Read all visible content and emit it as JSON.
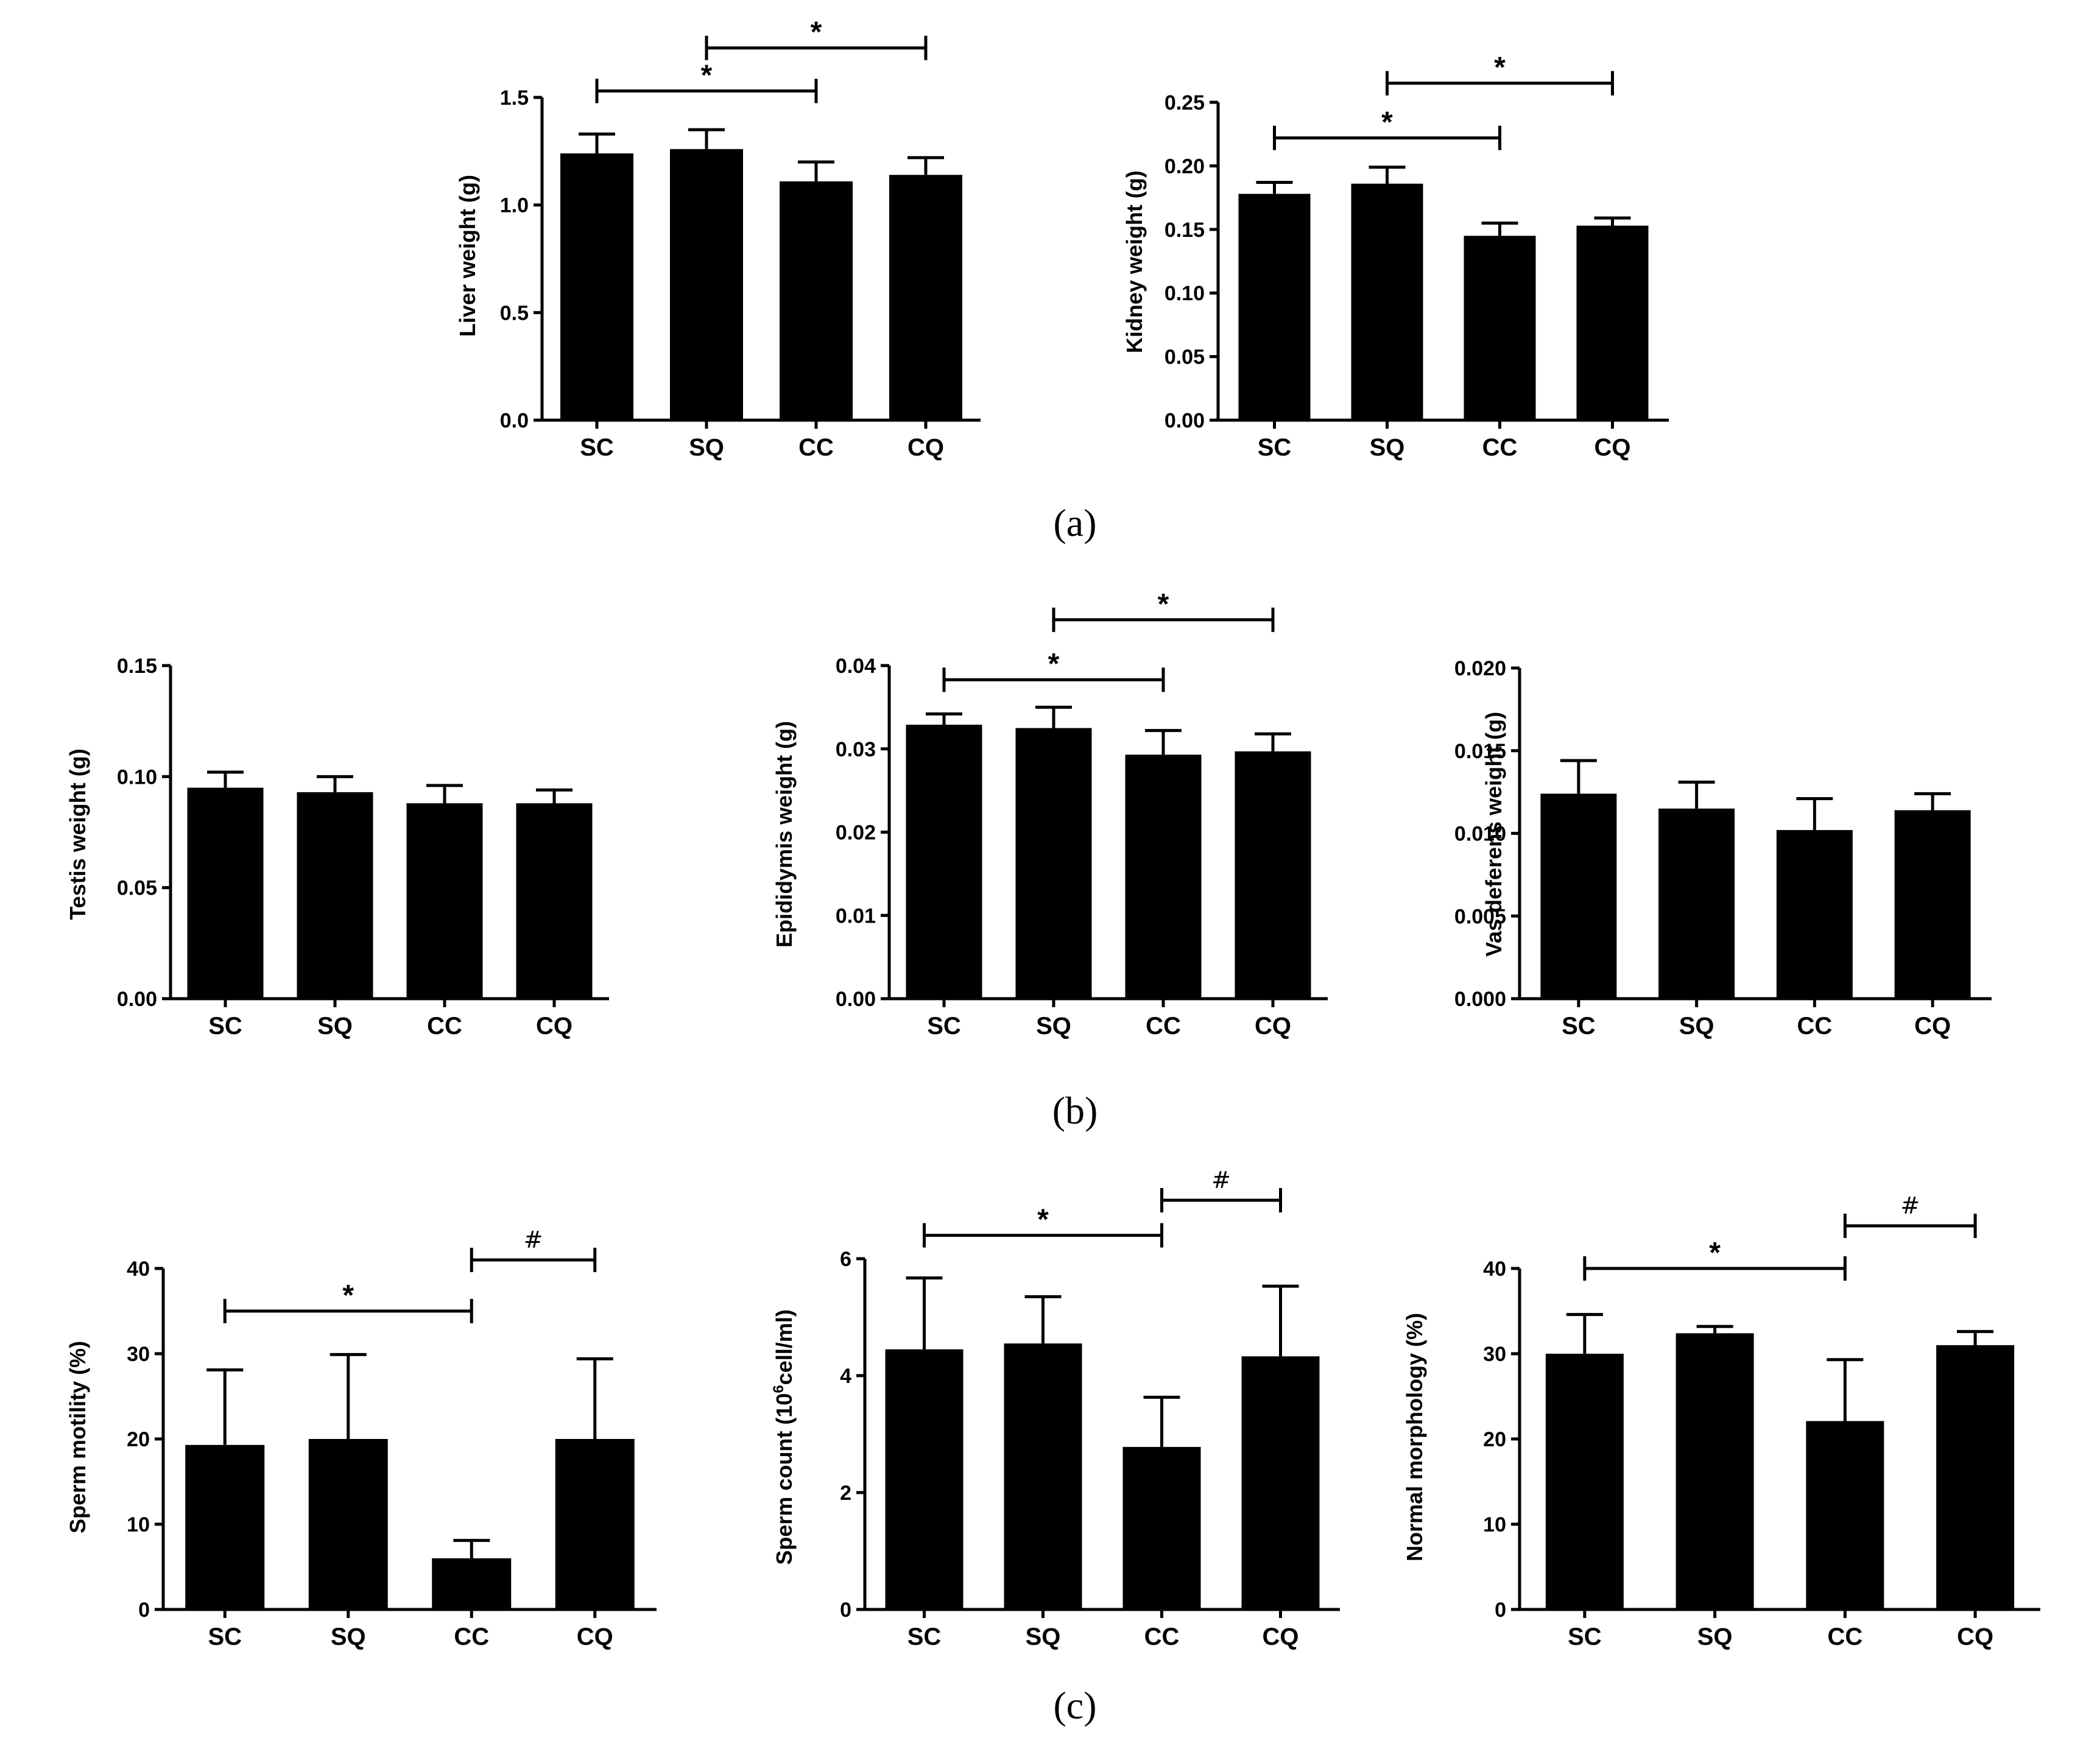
{
  "colors": {
    "bar": "#000000",
    "axis": "#000000",
    "background": "#ffffff"
  },
  "panel_labels": {
    "a": "(a)",
    "b": "(b)",
    "c": "(c)"
  },
  "chart_data": [
    {
      "id": "liver",
      "panel": "a",
      "type": "bar",
      "categories": [
        "SC",
        "SQ",
        "CC",
        "CQ"
      ],
      "values": [
        1.24,
        1.26,
        1.11,
        1.14
      ],
      "errors": [
        0.09,
        0.09,
        0.09,
        0.08
      ],
      "ylabel": "Liver weight (g)",
      "ylim": [
        0,
        1.5
      ],
      "yticks": [
        0,
        0.5,
        1.0,
        1.5
      ],
      "ytick_labels": [
        "0.0",
        "0.5",
        "1.0",
        "1.5"
      ],
      "annotations": [
        {
          "from": "SC",
          "to": "CC",
          "label": "*",
          "y": 1.53
        },
        {
          "from": "SQ",
          "to": "CQ",
          "label": "*",
          "y": 1.73
        }
      ]
    },
    {
      "id": "kidney",
      "panel": "a",
      "type": "bar",
      "categories": [
        "SC",
        "SQ",
        "CC",
        "CQ"
      ],
      "values": [
        0.178,
        0.186,
        0.145,
        0.153
      ],
      "errors": [
        0.009,
        0.013,
        0.01,
        0.006
      ],
      "ylabel": "Kidney weight (g)",
      "ylim": [
        0,
        0.25
      ],
      "yticks": [
        0,
        0.05,
        0.1,
        0.15,
        0.2,
        0.25
      ],
      "ytick_labels": [
        "0.00",
        "0.05",
        "0.10",
        "0.15",
        "0.20",
        "0.25"
      ],
      "annotations": [
        {
          "from": "SC",
          "to": "CC",
          "label": "*",
          "y": 0.222
        },
        {
          "from": "SQ",
          "to": "CQ",
          "label": "*",
          "y": 0.265
        }
      ]
    },
    {
      "id": "testis",
      "panel": "b",
      "type": "bar",
      "categories": [
        "SC",
        "SQ",
        "CC",
        "CQ"
      ],
      "values": [
        0.095,
        0.093,
        0.088,
        0.088
      ],
      "errors": [
        0.007,
        0.007,
        0.008,
        0.006
      ],
      "ylabel": "Testis weight (g)",
      "ylim": [
        0,
        0.15
      ],
      "yticks": [
        0,
        0.05,
        0.1,
        0.15
      ],
      "ytick_labels": [
        "0.00",
        "0.05",
        "0.10",
        "0.15"
      ],
      "annotations": []
    },
    {
      "id": "epididymis",
      "panel": "b",
      "type": "bar",
      "categories": [
        "SC",
        "SQ",
        "CC",
        "CQ"
      ],
      "values": [
        0.0329,
        0.0325,
        0.0293,
        0.0297
      ],
      "errors": [
        0.0013,
        0.0025,
        0.0029,
        0.0021
      ],
      "ylabel": "Epididymis weight (g)",
      "ylim": [
        0,
        0.04
      ],
      "yticks": [
        0,
        0.01,
        0.02,
        0.03,
        0.04
      ],
      "ytick_labels": [
        "0.00",
        "0.01",
        "0.02",
        "0.03",
        "0.04"
      ],
      "annotations": [
        {
          "from": "SC",
          "to": "CC",
          "label": "*",
          "y": 0.0383
        },
        {
          "from": "SQ",
          "to": "CQ",
          "label": "*",
          "y": 0.0455
        }
      ]
    },
    {
      "id": "vas",
      "panel": "b",
      "type": "bar",
      "categories": [
        "SC",
        "SQ",
        "CC",
        "CQ"
      ],
      "values": [
        0.0124,
        0.0115,
        0.0102,
        0.0114
      ],
      "errors": [
        0.002,
        0.0016,
        0.0019,
        0.001
      ],
      "ylabel": "Vas deferens weight (g)",
      "ylim": [
        0,
        0.02
      ],
      "yticks": [
        0,
        0.005,
        0.01,
        0.015,
        0.02
      ],
      "ytick_labels": [
        "0.000",
        "0.005",
        "0.010",
        "0.015",
        "0.020"
      ],
      "annotations": []
    },
    {
      "id": "motility",
      "panel": "c",
      "type": "bar",
      "categories": [
        "SC",
        "SQ",
        "CC",
        "CQ"
      ],
      "values": [
        19.3,
        20.0,
        6.0,
        20.0
      ],
      "errors": [
        8.8,
        9.9,
        2.1,
        9.4
      ],
      "ylabel": "Sperm motility (%)",
      "ylim": [
        0,
        40
      ],
      "yticks": [
        0,
        10,
        20,
        30,
        40
      ],
      "ytick_labels": [
        "0",
        "10",
        "20",
        "30",
        "40"
      ],
      "annotations": [
        {
          "from": "SC",
          "to": "CC",
          "label": "*",
          "y": 35.0
        },
        {
          "from": "CC",
          "to": "CQ",
          "label": "#",
          "y": 41.0
        }
      ]
    },
    {
      "id": "count",
      "panel": "c",
      "type": "bar",
      "categories": [
        "SC",
        "SQ",
        "CC",
        "CQ"
      ],
      "values": [
        4.45,
        4.55,
        2.78,
        4.33
      ],
      "errors": [
        1.22,
        0.8,
        0.85,
        1.2
      ],
      "ylabel": "Sperm count (10",
      "ylabel_sup": "6",
      "ylabel_tail": "cell/ml)",
      "ylim": [
        0,
        6
      ],
      "yticks": [
        0,
        2,
        4,
        6
      ],
      "ytick_labels": [
        "0",
        "2",
        "4",
        "6"
      ],
      "annotations": [
        {
          "from": "SC",
          "to": "CC",
          "label": "*",
          "y": 6.4
        },
        {
          "from": "CC",
          "to": "CQ",
          "label": "#",
          "y": 7.0
        }
      ]
    },
    {
      "id": "morphology",
      "panel": "c",
      "type": "bar",
      "categories": [
        "SC",
        "SQ",
        "CC",
        "CQ"
      ],
      "values": [
        30.0,
        32.4,
        22.1,
        31.0
      ],
      "errors": [
        4.6,
        0.8,
        7.2,
        1.6
      ],
      "ylabel": "Normal morphology (%)",
      "ylim": [
        0,
        40
      ],
      "yticks": [
        0,
        10,
        20,
        30,
        40
      ],
      "ytick_labels": [
        "0",
        "10",
        "20",
        "30",
        "40"
      ],
      "annotations": [
        {
          "from": "SC",
          "to": "CC",
          "label": "*",
          "y": 40.0
        },
        {
          "from": "CC",
          "to": "CQ",
          "label": "#",
          "y": 45.0
        }
      ]
    }
  ]
}
